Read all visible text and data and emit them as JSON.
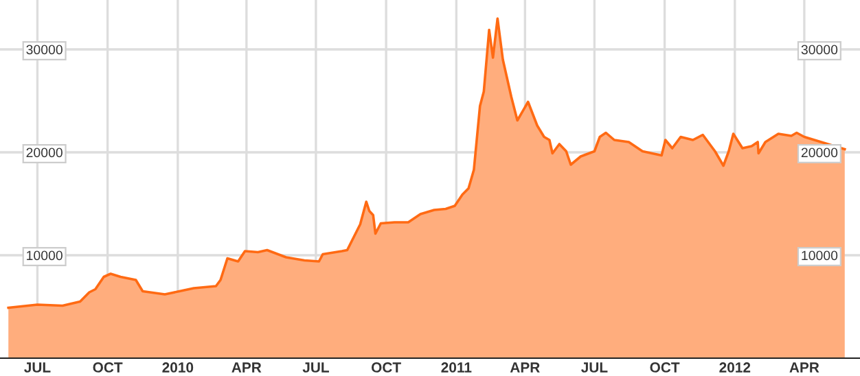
{
  "chart_data": {
    "type": "area",
    "x": [
      "2009-05-24",
      "2009-07-01",
      "2009-08-03",
      "2009-08-26",
      "2009-09-07",
      "2009-09-15",
      "2009-09-26",
      "2009-10-05",
      "2009-10-18",
      "2009-11-07",
      "2009-11-16",
      "2009-12-15",
      "2010-01-03",
      "2010-01-22",
      "2010-02-20",
      "2010-02-26",
      "2010-03-07",
      "2010-03-21",
      "2010-03-30",
      "2010-04-16",
      "2010-04-28",
      "2010-05-23",
      "2010-06-16",
      "2010-07-05",
      "2010-07-10",
      "2010-08-04",
      "2010-08-11",
      "2010-08-28",
      "2010-09-05",
      "2010-09-09",
      "2010-09-14",
      "2010-09-17",
      "2010-09-24",
      "2010-10-12",
      "2010-10-30",
      "2010-11-15",
      "2010-12-03",
      "2010-12-18",
      "2010-12-30",
      "2011-01-09",
      "2011-01-17",
      "2011-01-24",
      "2011-02-01",
      "2011-02-06",
      "2011-02-13",
      "2011-02-18",
      "2011-02-24",
      "2011-03-03",
      "2011-03-14",
      "2011-03-22",
      "2011-04-05",
      "2011-04-17",
      "2011-04-26",
      "2011-05-03",
      "2011-05-07",
      "2011-05-16",
      "2011-05-25",
      "2011-05-31",
      "2011-06-13",
      "2011-07-01",
      "2011-07-08",
      "2011-07-16",
      "2011-07-27",
      "2011-08-15",
      "2011-09-02",
      "2011-09-27",
      "2011-10-02",
      "2011-10-11",
      "2011-10-22",
      "2011-11-07",
      "2011-11-20",
      "2011-12-06",
      "2011-12-17",
      "2011-12-24",
      "2011-12-30",
      "2012-01-11",
      "2012-01-23",
      "2012-01-31",
      "2012-02-01",
      "2012-02-10",
      "2012-02-27",
      "2012-03-15",
      "2012-03-22",
      "2012-04-01",
      "2012-05-24"
    ],
    "series": [
      {
        "color": "#ff6a13",
        "values": [
          4900,
          5200,
          5100,
          5500,
          6400,
          6700,
          7900,
          8200,
          7900,
          7600,
          6500,
          6200,
          6500,
          6800,
          7000,
          7600,
          9700,
          9400,
          10400,
          10300,
          10500,
          9800,
          9500,
          9400,
          10100,
          10400,
          10500,
          13000,
          15200,
          14300,
          13900,
          12100,
          13100,
          13200,
          13200,
          14000,
          14400,
          14500,
          14800,
          15900,
          16500,
          18300,
          24500,
          25900,
          31900,
          29200,
          33000,
          29000,
          25400,
          23100,
          24900,
          22600,
          21500,
          21200,
          19900,
          20800,
          20100,
          18800,
          19600,
          20100,
          21500,
          21900,
          21200,
          21000,
          20100,
          19700,
          21200,
          20400,
          21500,
          21200,
          21700,
          20100,
          18700,
          20100,
          21800,
          20400,
          20600,
          21000,
          19900,
          21000,
          21800,
          21600,
          21900,
          21500,
          20300
        ]
      }
    ],
    "xlim": [
      "2009-05-13",
      "2012-06-13"
    ],
    "xticks": [
      {
        "value": "2009-07-01",
        "label": "JUL"
      },
      {
        "value": "2009-10-01",
        "label": "OCT"
      },
      {
        "value": "2010-01-01",
        "label": "2010"
      },
      {
        "value": "2010-04-01",
        "label": "APR"
      },
      {
        "value": "2010-07-01",
        "label": "JUL"
      },
      {
        "value": "2010-10-01",
        "label": "OCT"
      },
      {
        "value": "2011-01-01",
        "label": "2011"
      },
      {
        "value": "2011-04-01",
        "label": "APR"
      },
      {
        "value": "2011-07-01",
        "label": "JUL"
      },
      {
        "value": "2011-10-01",
        "label": "OCT"
      },
      {
        "value": "2012-01-01",
        "label": "2012"
      },
      {
        "value": "2012-04-01",
        "label": "APR"
      }
    ],
    "ylim": [
      0,
      34800
    ],
    "yticks": [
      10000,
      20000,
      30000
    ],
    "y2lim": [
      0,
      34800
    ],
    "y2ticks": [
      10000,
      20000,
      30000
    ],
    "grid": true
  }
}
